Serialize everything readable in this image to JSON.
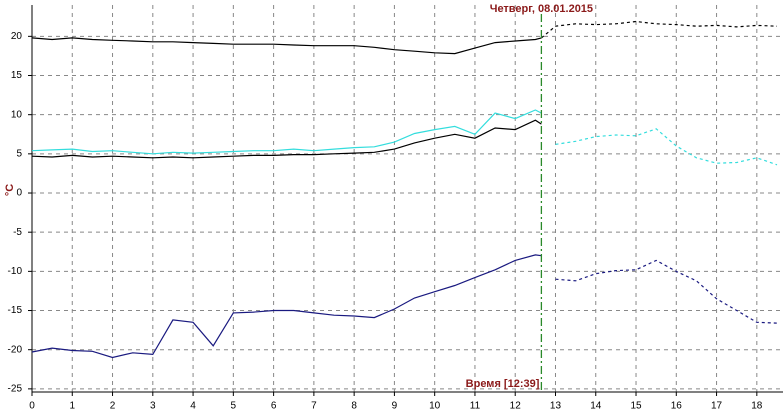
{
  "chart_data": {
    "type": "line",
    "annotation": "Четверг, 08.01.2015",
    "marker_label": "Время [12:39]",
    "marker_x": 12.65,
    "marker_color": "#2a8a2a",
    "y_label": "°C",
    "x": [
      0,
      0.5,
      1,
      1.5,
      2,
      2.5,
      3,
      3.5,
      4,
      4.5,
      5,
      5.5,
      6,
      6.5,
      7,
      7.5,
      8,
      8.5,
      9,
      9.5,
      10,
      10.5,
      11,
      11.5,
      12,
      12.5,
      12.65,
      13,
      13.5,
      14,
      14.5,
      15,
      15.5,
      16,
      16.5,
      17,
      17.5,
      18,
      18.5
    ],
    "series": [
      {
        "color": "#000000",
        "dash": false,
        "values": [
          19.8,
          19.6,
          19.8,
          19.6,
          19.5,
          19.4,
          19.3,
          19.3,
          19.2,
          19.1,
          19.0,
          19.0,
          19.0,
          18.9,
          18.8,
          18.8,
          18.8,
          18.6,
          18.3,
          18.1,
          17.9,
          17.8,
          18.5,
          19.2,
          19.4,
          19.6,
          19.8,
          null,
          null,
          null,
          null,
          null,
          null,
          null,
          null,
          null,
          null,
          null,
          null
        ]
      },
      {
        "color": "#000000",
        "dash": true,
        "values": [
          null,
          null,
          null,
          null,
          null,
          null,
          null,
          null,
          null,
          null,
          null,
          null,
          null,
          null,
          null,
          null,
          null,
          null,
          null,
          null,
          null,
          null,
          null,
          null,
          null,
          null,
          19.8,
          21.3,
          21.6,
          21.5,
          21.6,
          21.9,
          21.6,
          21.5,
          21.3,
          21.4,
          21.2,
          21.4,
          21.3
        ]
      },
      {
        "color": "#33dddd",
        "dash": false,
        "values": [
          5.4,
          5.5,
          5.6,
          5.3,
          5.4,
          5.2,
          5.0,
          5.2,
          5.1,
          5.2,
          5.3,
          5.4,
          5.4,
          5.6,
          5.4,
          5.6,
          5.8,
          5.9,
          6.5,
          7.6,
          8.1,
          8.5,
          7.5,
          10.2,
          9.5,
          10.6,
          10.2,
          null,
          null,
          null,
          null,
          null,
          null,
          null,
          null,
          null,
          null,
          null,
          null
        ]
      },
      {
        "color": "#33dddd",
        "dash": true,
        "values": [
          null,
          null,
          null,
          null,
          null,
          null,
          null,
          null,
          null,
          null,
          null,
          null,
          null,
          null,
          null,
          null,
          null,
          null,
          null,
          null,
          null,
          null,
          null,
          null,
          null,
          null,
          null,
          6.2,
          6.6,
          7.2,
          7.4,
          7.3,
          8.2,
          6.0,
          4.5,
          3.8,
          3.9,
          4.5,
          3.6
        ]
      },
      {
        "color": "#000000",
        "dash": false,
        "values": [
          4.7,
          4.6,
          4.8,
          4.6,
          4.7,
          4.6,
          4.5,
          4.6,
          4.5,
          4.6,
          4.7,
          4.8,
          4.8,
          4.9,
          4.9,
          5.0,
          5.1,
          5.2,
          5.6,
          6.4,
          7.0,
          7.5,
          7.0,
          8.3,
          8.1,
          9.3,
          8.8,
          null,
          null,
          null,
          null,
          null,
          null,
          null,
          null,
          null,
          null,
          null,
          null
        ]
      },
      {
        "color": "#1a1a80",
        "dash": false,
        "values": [
          -20.3,
          -19.8,
          -20.1,
          -20.2,
          -21.0,
          -20.4,
          -20.6,
          -16.2,
          -16.5,
          -19.5,
          -15.3,
          -15.2,
          -15.0,
          -15.0,
          -15.3,
          -15.6,
          -15.7,
          -15.9,
          -14.8,
          -13.4,
          -12.6,
          -11.8,
          -10.8,
          -9.8,
          -8.6,
          -7.9,
          -8.0,
          null,
          null,
          null,
          null,
          null,
          null,
          null,
          null,
          null,
          null,
          null,
          null
        ]
      },
      {
        "color": "#1a1a80",
        "dash": true,
        "values": [
          null,
          null,
          null,
          null,
          null,
          null,
          null,
          null,
          null,
          null,
          null,
          null,
          null,
          null,
          null,
          null,
          null,
          null,
          null,
          null,
          null,
          null,
          null,
          null,
          null,
          null,
          null,
          -11.0,
          -11.2,
          -10.3,
          -9.9,
          -9.8,
          -8.6,
          -10.0,
          -11.2,
          -13.5,
          -15.0,
          -16.5,
          -16.6
        ]
      }
    ],
    "xlim": [
      0,
      18.65
    ],
    "xticks": [
      0,
      1,
      2,
      3,
      4,
      5,
      6,
      7,
      8,
      9,
      10,
      11,
      12,
      13,
      14,
      15,
      16,
      17,
      18
    ],
    "ylim": [
      -25.4,
      24
    ],
    "yticks": [
      20,
      15,
      10,
      5,
      0,
      -5,
      -10,
      -15,
      -20,
      -25
    ],
    "grid": true
  }
}
